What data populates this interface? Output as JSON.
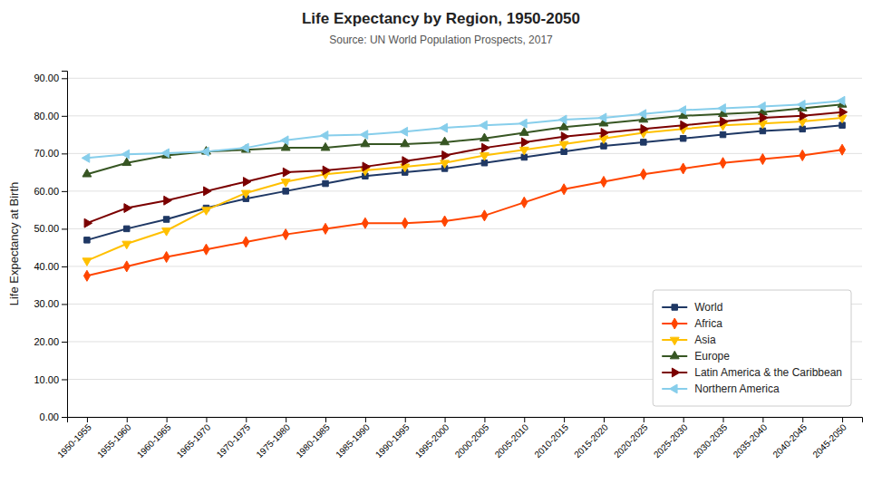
{
  "chart_data": {
    "type": "line",
    "title": "Life Expectancy by Region, 1950-2050",
    "subtitle": "Source: UN World Population Prospects, 2017",
    "y_label": "Life Expectancy at Birth",
    "categories": [
      "1950-1955",
      "1955-1960",
      "1960-1965",
      "1965-1970",
      "1970-1975",
      "1975-1980",
      "1980-1985",
      "1985-1990",
      "1990-1995",
      "1995-2000",
      "2000-2005",
      "2005-2010",
      "2010-2015",
      "2015-2020",
      "2020-2025",
      "2025-2030",
      "2030-2035",
      "2035-2040",
      "2040-2045",
      "2045-2050"
    ],
    "ylim": [
      0,
      92
    ],
    "yticks": [
      {
        "value": 0,
        "label": "0.00"
      },
      {
        "value": 10,
        "label": "10.00"
      },
      {
        "value": 20,
        "label": "20.00"
      },
      {
        "value": 30,
        "label": "30.00"
      },
      {
        "value": 40,
        "label": "40.00"
      },
      {
        "value": 50,
        "label": "50.00"
      },
      {
        "value": 60,
        "label": "60.00"
      },
      {
        "value": 70,
        "label": "70.00"
      },
      {
        "value": 80,
        "label": "80.00"
      },
      {
        "value": 90,
        "label": "90.00"
      }
    ],
    "grid": true,
    "legend": "lower right",
    "series": [
      {
        "name": "World",
        "color": "#1F3864",
        "marker": "square",
        "values": [
          47.0,
          50.0,
          52.5,
          55.5,
          58.0,
          60.0,
          62.0,
          64.0,
          65.0,
          66.0,
          67.5,
          69.0,
          70.5,
          72.0,
          73.0,
          74.0,
          75.0,
          76.0,
          76.5,
          77.5
        ]
      },
      {
        "name": "Africa",
        "color": "#FF4500",
        "marker": "diamond",
        "values": [
          37.5,
          40.0,
          42.5,
          44.5,
          46.5,
          48.5,
          50.0,
          51.5,
          51.5,
          52.0,
          53.5,
          57.0,
          60.5,
          62.5,
          64.5,
          66.0,
          67.5,
          68.5,
          69.5,
          71.0
        ]
      },
      {
        "name": "Asia",
        "color": "#FFC000",
        "marker": "triangle-down",
        "values": [
          41.5,
          46.0,
          49.5,
          55.0,
          59.5,
          62.5,
          64.5,
          65.5,
          66.5,
          67.5,
          69.5,
          71.0,
          72.5,
          74.0,
          75.5,
          76.5,
          77.5,
          78.0,
          78.5,
          79.5
        ]
      },
      {
        "name": "Europe",
        "color": "#375623",
        "marker": "triangle-up",
        "values": [
          64.5,
          67.5,
          69.5,
          70.5,
          71.0,
          71.5,
          71.5,
          72.5,
          72.5,
          73.0,
          74.0,
          75.5,
          77.0,
          78.0,
          79.0,
          80.0,
          80.5,
          81.0,
          82.0,
          83.0
        ]
      },
      {
        "name": "Latin America & the Caribbean",
        "color": "#7B0000",
        "marker": "triangle-right",
        "values": [
          51.5,
          55.5,
          57.5,
          60.0,
          62.5,
          65.0,
          65.5,
          66.5,
          68.0,
          69.5,
          71.5,
          73.0,
          74.5,
          75.5,
          76.5,
          77.5,
          78.5,
          79.5,
          80.0,
          81.0
        ]
      },
      {
        "name": "Northern America",
        "color": "#87CEEB",
        "marker": "triangle-left",
        "values": [
          68.8,
          69.8,
          70.1,
          70.5,
          71.5,
          73.5,
          74.8,
          75.0,
          75.8,
          76.8,
          77.5,
          78.0,
          79.0,
          79.5,
          80.5,
          81.5,
          82.0,
          82.5,
          83.0,
          84.0
        ]
      }
    ]
  }
}
